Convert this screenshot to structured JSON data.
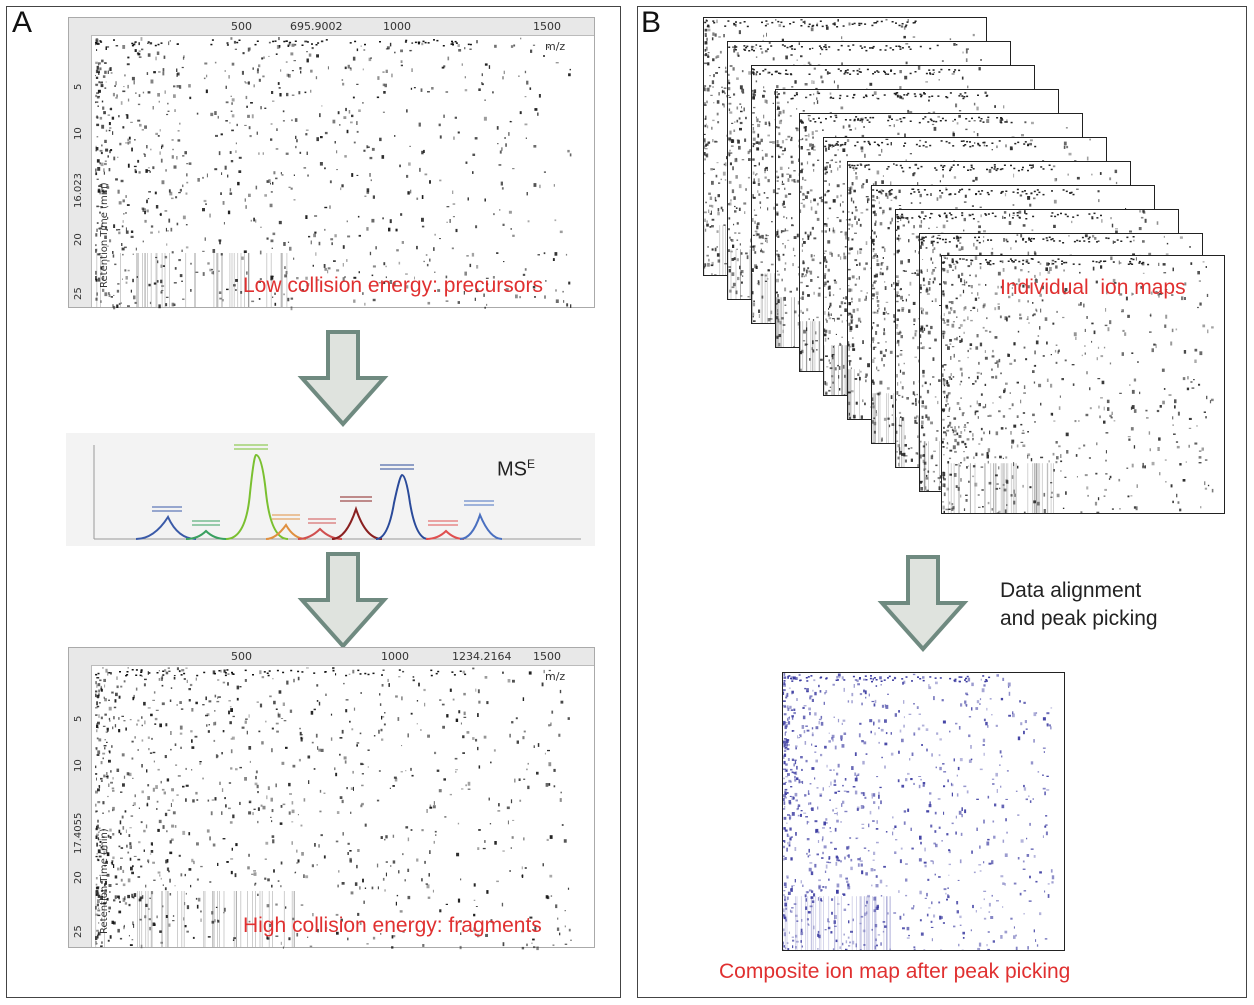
{
  "panelA": {
    "letter": "A",
    "top_map": {
      "ticks_x": [
        "500",
        "695.9002",
        "1000",
        "1500"
      ],
      "mz_label": "m/z",
      "ticks_y": [
        "5",
        "10",
        "16.023",
        "20",
        "25"
      ],
      "rt_label": "Retention Time (min)",
      "caption": "Low collision energy: precursors"
    },
    "chromatogram": {
      "label_main": "MS",
      "label_sup": "E"
    },
    "bottom_map": {
      "ticks_x": [
        "500",
        "1000",
        "1234.2164",
        "1500"
      ],
      "mz_label": "m/z",
      "ticks_y": [
        "5",
        "10",
        "17.4055",
        "20",
        "25"
      ],
      "rt_label": "Retention Time (min)",
      "caption": "High collision energy: fragments"
    }
  },
  "panelB": {
    "letter": "B",
    "stack_caption": "Individual  ion maps",
    "step_line1": "Data alignment",
    "step_line2": "and peak picking",
    "composite_caption": "Composite ion map after peak picking"
  },
  "colors": {
    "arrow_fill": "#dfe3de",
    "arrow_stroke": "#6f8a80",
    "caption_red": "#e03030",
    "composite_dots": "#3a3aa0"
  }
}
